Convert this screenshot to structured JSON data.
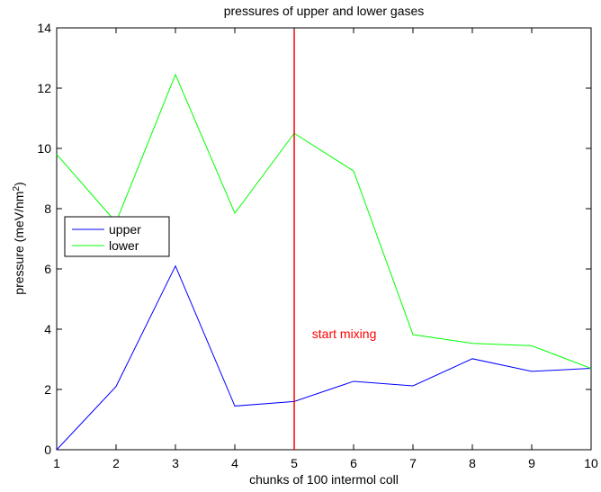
{
  "chart_data": {
    "type": "line",
    "title": "pressures of upper and lower gases",
    "xlabel": "chunks of 100 intermol coll",
    "ylabel_main": "pressure (meV/nm",
    "ylabel_sup": "2",
    "ylabel_close": ")",
    "x": [
      1,
      2,
      3,
      4,
      5,
      6,
      7,
      8,
      9,
      10
    ],
    "xlim": [
      1,
      10
    ],
    "ylim": [
      0,
      14
    ],
    "xticks": [
      1,
      2,
      3,
      4,
      5,
      6,
      7,
      8,
      9,
      10
    ],
    "yticks": [
      0,
      2,
      4,
      6,
      8,
      10,
      12,
      14
    ],
    "grid": false,
    "legend_position": "left, middle",
    "series": [
      {
        "name": "upper",
        "color": "#0000ff",
        "values": [
          0.0,
          2.1,
          6.1,
          1.45,
          1.6,
          2.27,
          2.12,
          3.02,
          2.6,
          2.7
        ]
      },
      {
        "name": "lower",
        "color": "#00ff00",
        "values": [
          9.8,
          7.55,
          12.45,
          7.85,
          10.5,
          9.25,
          3.82,
          3.53,
          3.45,
          2.7
        ]
      }
    ],
    "marker_line": {
      "x": 5,
      "color": "#ff0000"
    },
    "annotation": {
      "text": "start  mixing",
      "x": 5.3,
      "y": 3.7,
      "color": "#ff0000"
    }
  }
}
